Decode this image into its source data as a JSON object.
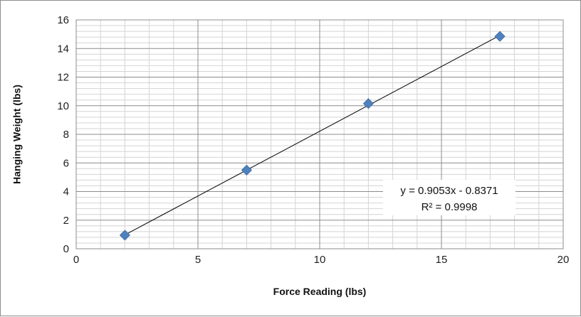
{
  "chart_data": {
    "type": "scatter",
    "title": "",
    "xlabel": "Force Reading (lbs)",
    "ylabel": "Hanging Weight (lbs)",
    "xlim": [
      0,
      20
    ],
    "ylim": [
      0,
      16
    ],
    "x_major_ticks": [
      0,
      5,
      10,
      15,
      20
    ],
    "y_major_ticks": [
      0,
      2,
      4,
      6,
      8,
      10,
      12,
      14,
      16
    ],
    "x_tick_labels": [
      "0",
      "5",
      "10",
      "15",
      "20"
    ],
    "y_tick_labels": [
      "0",
      "2",
      "4",
      "6",
      "8",
      "10",
      "12",
      "14",
      "16"
    ],
    "x_minor_step": 1,
    "y_minor_step": 0.4,
    "grid": true,
    "legend": false,
    "series": [
      {
        "marker": "diamond",
        "color": "#4f81bd",
        "points": [
          {
            "x": 2.0,
            "y": 0.95
          },
          {
            "x": 7.0,
            "y": 5.5
          },
          {
            "x": 12.0,
            "y": 10.15
          },
          {
            "x": 17.4,
            "y": 14.85
          }
        ]
      }
    ],
    "trendline": {
      "type": "linear",
      "slope": 0.9053,
      "intercept": -0.8371,
      "x_range": [
        2.0,
        17.4
      ],
      "color": "#000000",
      "equation_label": "y = 0.9053x - 0.8371",
      "r2_label": "R² = 0.9998"
    }
  }
}
